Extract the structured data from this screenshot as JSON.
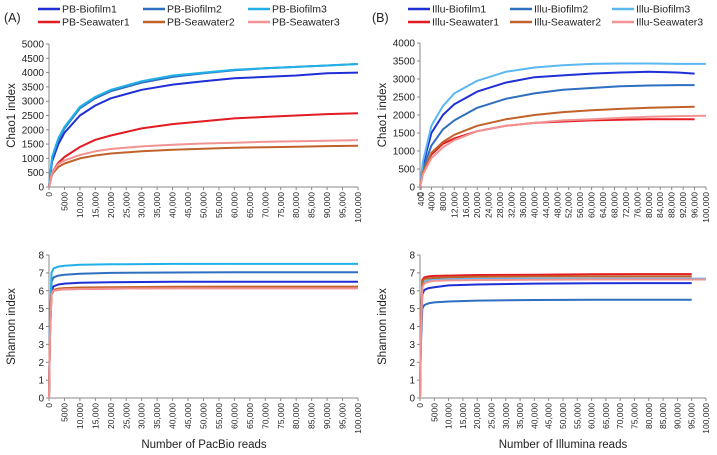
{
  "panels": {
    "A": {
      "label": "(A)"
    },
    "B": {
      "label": "(B)"
    }
  },
  "legend_A": [
    {
      "name": "PB-Biofilm1",
      "color": "#1f2fd6"
    },
    {
      "name": "PB-Biofilm2",
      "color": "#2e6fbf"
    },
    {
      "name": "PB-Biofilm3",
      "color": "#22b0e8"
    },
    {
      "name": "PB-Seawater1",
      "color": "#e31b23"
    },
    {
      "name": "PB-Seawater2",
      "color": "#c0622a"
    },
    {
      "name": "PB-Seawater3",
      "color": "#f29393"
    }
  ],
  "legend_B": [
    {
      "name": "Illu-Biofilm1",
      "color": "#1f2fd6"
    },
    {
      "name": "Illu-Biofilm2",
      "color": "#2e6fbf"
    },
    {
      "name": "Illu-Biofilm3",
      "color": "#5cb8f0"
    },
    {
      "name": "Illu-Seawater1",
      "color": "#e31b23"
    },
    {
      "name": "Illu-Seawater2",
      "color": "#c0622a"
    },
    {
      "name": "Illu-Seawater3",
      "color": "#f29393"
    }
  ],
  "chart_data": [
    {
      "id": "A-chao1",
      "type": "line",
      "panel": "A",
      "ylabel": "Chao1 index",
      "xlabel": "",
      "ylim": [
        0,
        5000
      ],
      "yticks": [
        0,
        500,
        1000,
        1500,
        2000,
        2500,
        3000,
        3500,
        4000,
        4500,
        5000
      ],
      "xlim": [
        0,
        100000
      ],
      "xticks": [
        "0",
        "5000",
        "10,000",
        "15,000",
        "20,000",
        "25,000",
        "30,000",
        "35,000",
        "40,000",
        "45,000",
        "50,000",
        "55,000",
        "60,000",
        "65,000",
        "70,000",
        "75,000",
        "80,000",
        "85,000",
        "90,000",
        "95,000",
        "100,000"
      ],
      "series": [
        {
          "name": "PB-Biofilm1",
          "color": "#1f2fd6",
          "x": [
            0,
            1000,
            3000,
            5000,
            10000,
            15000,
            20000,
            30000,
            40000,
            50000,
            60000,
            70000,
            80000,
            90000,
            100000
          ],
          "y": [
            0,
            900,
            1500,
            1900,
            2500,
            2850,
            3100,
            3400,
            3580,
            3700,
            3800,
            3850,
            3900,
            3980,
            4000
          ]
        },
        {
          "name": "PB-Biofilm2",
          "color": "#2e6fbf",
          "x": [
            0,
            1000,
            3000,
            5000,
            10000,
            15000,
            20000,
            30000,
            40000,
            50000,
            60000,
            70000,
            80000,
            90000,
            100000
          ],
          "y": [
            0,
            1000,
            1650,
            2050,
            2750,
            3100,
            3350,
            3650,
            3850,
            3980,
            4080,
            4150,
            4200,
            4250,
            4300
          ]
        },
        {
          "name": "PB-Biofilm3",
          "color": "#22b0e8",
          "x": [
            0,
            1000,
            3000,
            5000,
            10000,
            15000,
            20000,
            30000,
            40000,
            50000,
            60000,
            70000,
            80000,
            90000,
            100000
          ],
          "y": [
            0,
            1050,
            1700,
            2100,
            2800,
            3150,
            3400,
            3700,
            3900,
            4000,
            4100,
            4150,
            4200,
            4250,
            4300
          ]
        },
        {
          "name": "PB-Seawater1",
          "color": "#e31b23",
          "x": [
            0,
            1000,
            3000,
            5000,
            10000,
            15000,
            20000,
            30000,
            40000,
            50000,
            60000,
            70000,
            80000,
            90000,
            100000
          ],
          "y": [
            0,
            500,
            850,
            1050,
            1400,
            1650,
            1800,
            2050,
            2200,
            2300,
            2400,
            2450,
            2500,
            2550,
            2580
          ]
        },
        {
          "name": "PB-Seawater2",
          "color": "#c0622a",
          "x": [
            0,
            1000,
            3000,
            5000,
            10000,
            15000,
            20000,
            30000,
            40000,
            50000,
            60000,
            70000,
            80000,
            90000,
            100000
          ],
          "y": [
            0,
            450,
            700,
            820,
            1000,
            1100,
            1170,
            1250,
            1300,
            1340,
            1370,
            1390,
            1410,
            1430,
            1440
          ]
        },
        {
          "name": "PB-Seawater3",
          "color": "#f29393",
          "x": [
            0,
            1000,
            3000,
            5000,
            10000,
            15000,
            20000,
            30000,
            40000,
            50000,
            60000,
            70000,
            80000,
            90000,
            100000
          ],
          "y": [
            0,
            500,
            800,
            930,
            1120,
            1250,
            1330,
            1420,
            1480,
            1520,
            1550,
            1580,
            1600,
            1620,
            1640
          ]
        }
      ]
    },
    {
      "id": "A-shannon",
      "type": "line",
      "panel": "A",
      "ylabel": "Shannon index",
      "xlabel": "Number of PacBio reads",
      "ylim": [
        0,
        8
      ],
      "yticks": [
        0,
        1,
        2,
        3,
        4,
        5,
        6,
        7,
        8
      ],
      "xlim": [
        0,
        100000
      ],
      "xticks": [
        "0",
        "5000",
        "10,000",
        "15,000",
        "20,000",
        "25,000",
        "30,000",
        "35,000",
        "40,000",
        "45,000",
        "50,000",
        "55,000",
        "60,000",
        "65,000",
        "70,000",
        "75,000",
        "80,000",
        "85,000",
        "90,000",
        "95,000",
        "100,000"
      ],
      "series": [
        {
          "name": "PB-Biofilm1",
          "color": "#1f2fd6",
          "x": [
            0,
            300,
            800,
            1500,
            3000,
            5000,
            10000,
            20000,
            40000,
            60000,
            80000,
            100000
          ],
          "y": [
            0,
            3.5,
            6.0,
            6.25,
            6.35,
            6.4,
            6.45,
            6.48,
            6.5,
            6.5,
            6.5,
            6.5
          ]
        },
        {
          "name": "PB-Biofilm2",
          "color": "#2e6fbf",
          "x": [
            0,
            300,
            800,
            1500,
            3000,
            5000,
            10000,
            20000,
            40000,
            60000,
            80000,
            100000
          ],
          "y": [
            0,
            3.8,
            6.5,
            6.75,
            6.85,
            6.9,
            6.95,
            7.0,
            7.02,
            7.03,
            7.03,
            7.03
          ]
        },
        {
          "name": "PB-Biofilm3",
          "color": "#22b0e8",
          "x": [
            0,
            300,
            800,
            1500,
            3000,
            5000,
            10000,
            20000,
            40000,
            60000,
            80000,
            100000
          ],
          "y": [
            0,
            4.0,
            7.0,
            7.25,
            7.35,
            7.4,
            7.45,
            7.48,
            7.5,
            7.5,
            7.5,
            7.5
          ]
        },
        {
          "name": "PB-Seawater1",
          "color": "#e31b23",
          "x": [
            0,
            300,
            800,
            1500,
            3000,
            5000,
            10000,
            20000,
            40000,
            60000,
            80000,
            100000
          ],
          "y": [
            0,
            3.3,
            5.8,
            6.0,
            6.05,
            6.08,
            6.1,
            6.12,
            6.15,
            6.15,
            6.15,
            6.15
          ]
        },
        {
          "name": "PB-Seawater2",
          "color": "#c0622a",
          "x": [
            0,
            300,
            800,
            1500,
            3000,
            5000,
            10000,
            20000,
            40000,
            60000,
            80000,
            100000
          ],
          "y": [
            0,
            3.4,
            5.9,
            6.05,
            6.12,
            6.15,
            6.18,
            6.2,
            6.22,
            6.23,
            6.23,
            6.23
          ]
        },
        {
          "name": "PB-Seawater3",
          "color": "#f29393",
          "x": [
            0,
            300,
            800,
            1500,
            3000,
            5000,
            10000,
            20000,
            40000,
            60000,
            80000,
            100000
          ],
          "y": [
            0,
            3.3,
            5.85,
            6.0,
            6.05,
            6.08,
            6.1,
            6.12,
            6.13,
            6.13,
            6.13,
            6.13
          ]
        }
      ]
    },
    {
      "id": "B-chao1",
      "type": "line",
      "panel": "B",
      "ylabel": "Chao1 index",
      "xlabel": "",
      "ylim": [
        0,
        4000
      ],
      "yticks": [
        0,
        500,
        1000,
        1500,
        2000,
        2500,
        3000,
        3500,
        4000
      ],
      "xlim": [
        0,
        100000
      ],
      "xticks": [
        "0",
        "400",
        "4000",
        "8000",
        "12,000",
        "16,000",
        "20,000",
        "24,000",
        "28,000",
        "32,000",
        "36,000",
        "40,000",
        "44,000",
        "48,000",
        "52,000",
        "56,000",
        "60,000",
        "64,000",
        "68,000",
        "72,000",
        "76,000",
        "80,000",
        "84,000",
        "88,000",
        "92,000",
        "96,000",
        "100,000"
      ],
      "series": [
        {
          "name": "Illu-Biofilm1",
          "color": "#1f2fd6",
          "x": [
            0,
            1000,
            4000,
            8000,
            12000,
            20000,
            30000,
            40000,
            50000,
            60000,
            70000,
            80000,
            90000,
            96000
          ],
          "y": [
            0,
            600,
            1500,
            2000,
            2300,
            2650,
            2900,
            3050,
            3100,
            3150,
            3180,
            3200,
            3180,
            3150
          ]
        },
        {
          "name": "Illu-Biofilm2",
          "color": "#2e6fbf",
          "x": [
            0,
            1000,
            4000,
            8000,
            12000,
            20000,
            30000,
            40000,
            50000,
            60000,
            70000,
            80000,
            90000,
            96000
          ],
          "y": [
            0,
            500,
            1150,
            1600,
            1850,
            2200,
            2450,
            2600,
            2700,
            2750,
            2800,
            2820,
            2830,
            2830
          ]
        },
        {
          "name": "Illu-Biofilm3",
          "color": "#5cb8f0",
          "x": [
            0,
            1000,
            4000,
            8000,
            12000,
            20000,
            30000,
            40000,
            50000,
            60000,
            70000,
            80000,
            90000,
            100000
          ],
          "y": [
            0,
            700,
            1700,
            2250,
            2600,
            2950,
            3200,
            3320,
            3380,
            3420,
            3430,
            3430,
            3420,
            3420
          ]
        },
        {
          "name": "Illu-Seawater1",
          "color": "#e31b23",
          "x": [
            0,
            1000,
            4000,
            8000,
            12000,
            20000,
            30000,
            40000,
            50000,
            60000,
            70000,
            80000,
            90000,
            96000
          ],
          "y": [
            0,
            400,
            900,
            1200,
            1350,
            1550,
            1700,
            1780,
            1820,
            1850,
            1870,
            1880,
            1880,
            1880
          ]
        },
        {
          "name": "Illu-Seawater2",
          "color": "#c0622a",
          "x": [
            0,
            1000,
            4000,
            8000,
            12000,
            20000,
            30000,
            40000,
            50000,
            60000,
            70000,
            80000,
            90000,
            96000
          ],
          "y": [
            0,
            400,
            950,
            1250,
            1450,
            1700,
            1880,
            2000,
            2080,
            2130,
            2170,
            2200,
            2220,
            2230
          ]
        },
        {
          "name": "Illu-Seawater3",
          "color": "#f29393",
          "x": [
            0,
            1000,
            4000,
            8000,
            12000,
            20000,
            30000,
            40000,
            50000,
            60000,
            70000,
            80000,
            90000,
            100000
          ],
          "y": [
            0,
            350,
            800,
            1100,
            1300,
            1550,
            1700,
            1780,
            1850,
            1880,
            1920,
            1950,
            1970,
            1980
          ]
        }
      ]
    },
    {
      "id": "B-shannon",
      "type": "line",
      "panel": "B",
      "ylabel": "Shannon index",
      "xlabel": "Number of Illumina reads",
      "ylim": [
        0,
        8
      ],
      "yticks": [
        0,
        1,
        2,
        3,
        4,
        5,
        6,
        7,
        8
      ],
      "xlim": [
        0,
        100000
      ],
      "xticks": [
        "0",
        "5000",
        "10,000",
        "15,000",
        "20,000",
        "25,000",
        "30,000",
        "35,000",
        "40,000",
        "45,000",
        "50,000",
        "55,000",
        "60,000",
        "65,000",
        "70,000",
        "75,000",
        "80,000",
        "85,000",
        "90,000",
        "95,000",
        "100,000"
      ],
      "series": [
        {
          "name": "Illu-Biofilm1",
          "color": "#1f2fd6",
          "x": [
            0,
            300,
            800,
            1500,
            3000,
            5000,
            10000,
            20000,
            40000,
            60000,
            80000,
            95000
          ],
          "y": [
            0,
            3.5,
            5.8,
            6.05,
            6.15,
            6.2,
            6.3,
            6.35,
            6.4,
            6.42,
            6.43,
            6.43
          ]
        },
        {
          "name": "Illu-Biofilm2",
          "color": "#2e6fbf",
          "x": [
            0,
            300,
            800,
            1500,
            3000,
            5000,
            10000,
            20000,
            40000,
            60000,
            80000,
            95000
          ],
          "y": [
            0,
            3.0,
            5.0,
            5.2,
            5.3,
            5.35,
            5.4,
            5.45,
            5.48,
            5.5,
            5.5,
            5.5
          ]
        },
        {
          "name": "Illu-Biofilm3",
          "color": "#5cb8f0",
          "x": [
            0,
            300,
            800,
            1500,
            3000,
            5000,
            10000,
            20000,
            40000,
            60000,
            80000,
            100000
          ],
          "y": [
            0,
            3.7,
            6.3,
            6.5,
            6.6,
            6.63,
            6.65,
            6.67,
            6.68,
            6.68,
            6.68,
            6.68
          ]
        },
        {
          "name": "Illu-Seawater1",
          "color": "#e31b23",
          "x": [
            0,
            300,
            800,
            1500,
            3000,
            5000,
            10000,
            20000,
            40000,
            60000,
            80000,
            95000
          ],
          "y": [
            0,
            3.9,
            6.6,
            6.75,
            6.8,
            6.83,
            6.85,
            6.88,
            6.9,
            6.92,
            6.93,
            6.93
          ]
        },
        {
          "name": "Illu-Seawater2",
          "color": "#c0622a",
          "x": [
            0,
            300,
            800,
            1500,
            3000,
            5000,
            10000,
            20000,
            40000,
            60000,
            80000,
            95000
          ],
          "y": [
            0,
            3.8,
            6.5,
            6.65,
            6.7,
            6.72,
            6.75,
            6.78,
            6.8,
            6.8,
            6.8,
            6.8
          ]
        },
        {
          "name": "Illu-Seawater3",
          "color": "#f29393",
          "x": [
            0,
            300,
            800,
            1500,
            3000,
            5000,
            10000,
            20000,
            40000,
            60000,
            80000,
            100000
          ],
          "y": [
            0,
            3.6,
            6.2,
            6.4,
            6.5,
            6.55,
            6.58,
            6.6,
            6.62,
            6.63,
            6.63,
            6.63
          ]
        }
      ]
    }
  ]
}
